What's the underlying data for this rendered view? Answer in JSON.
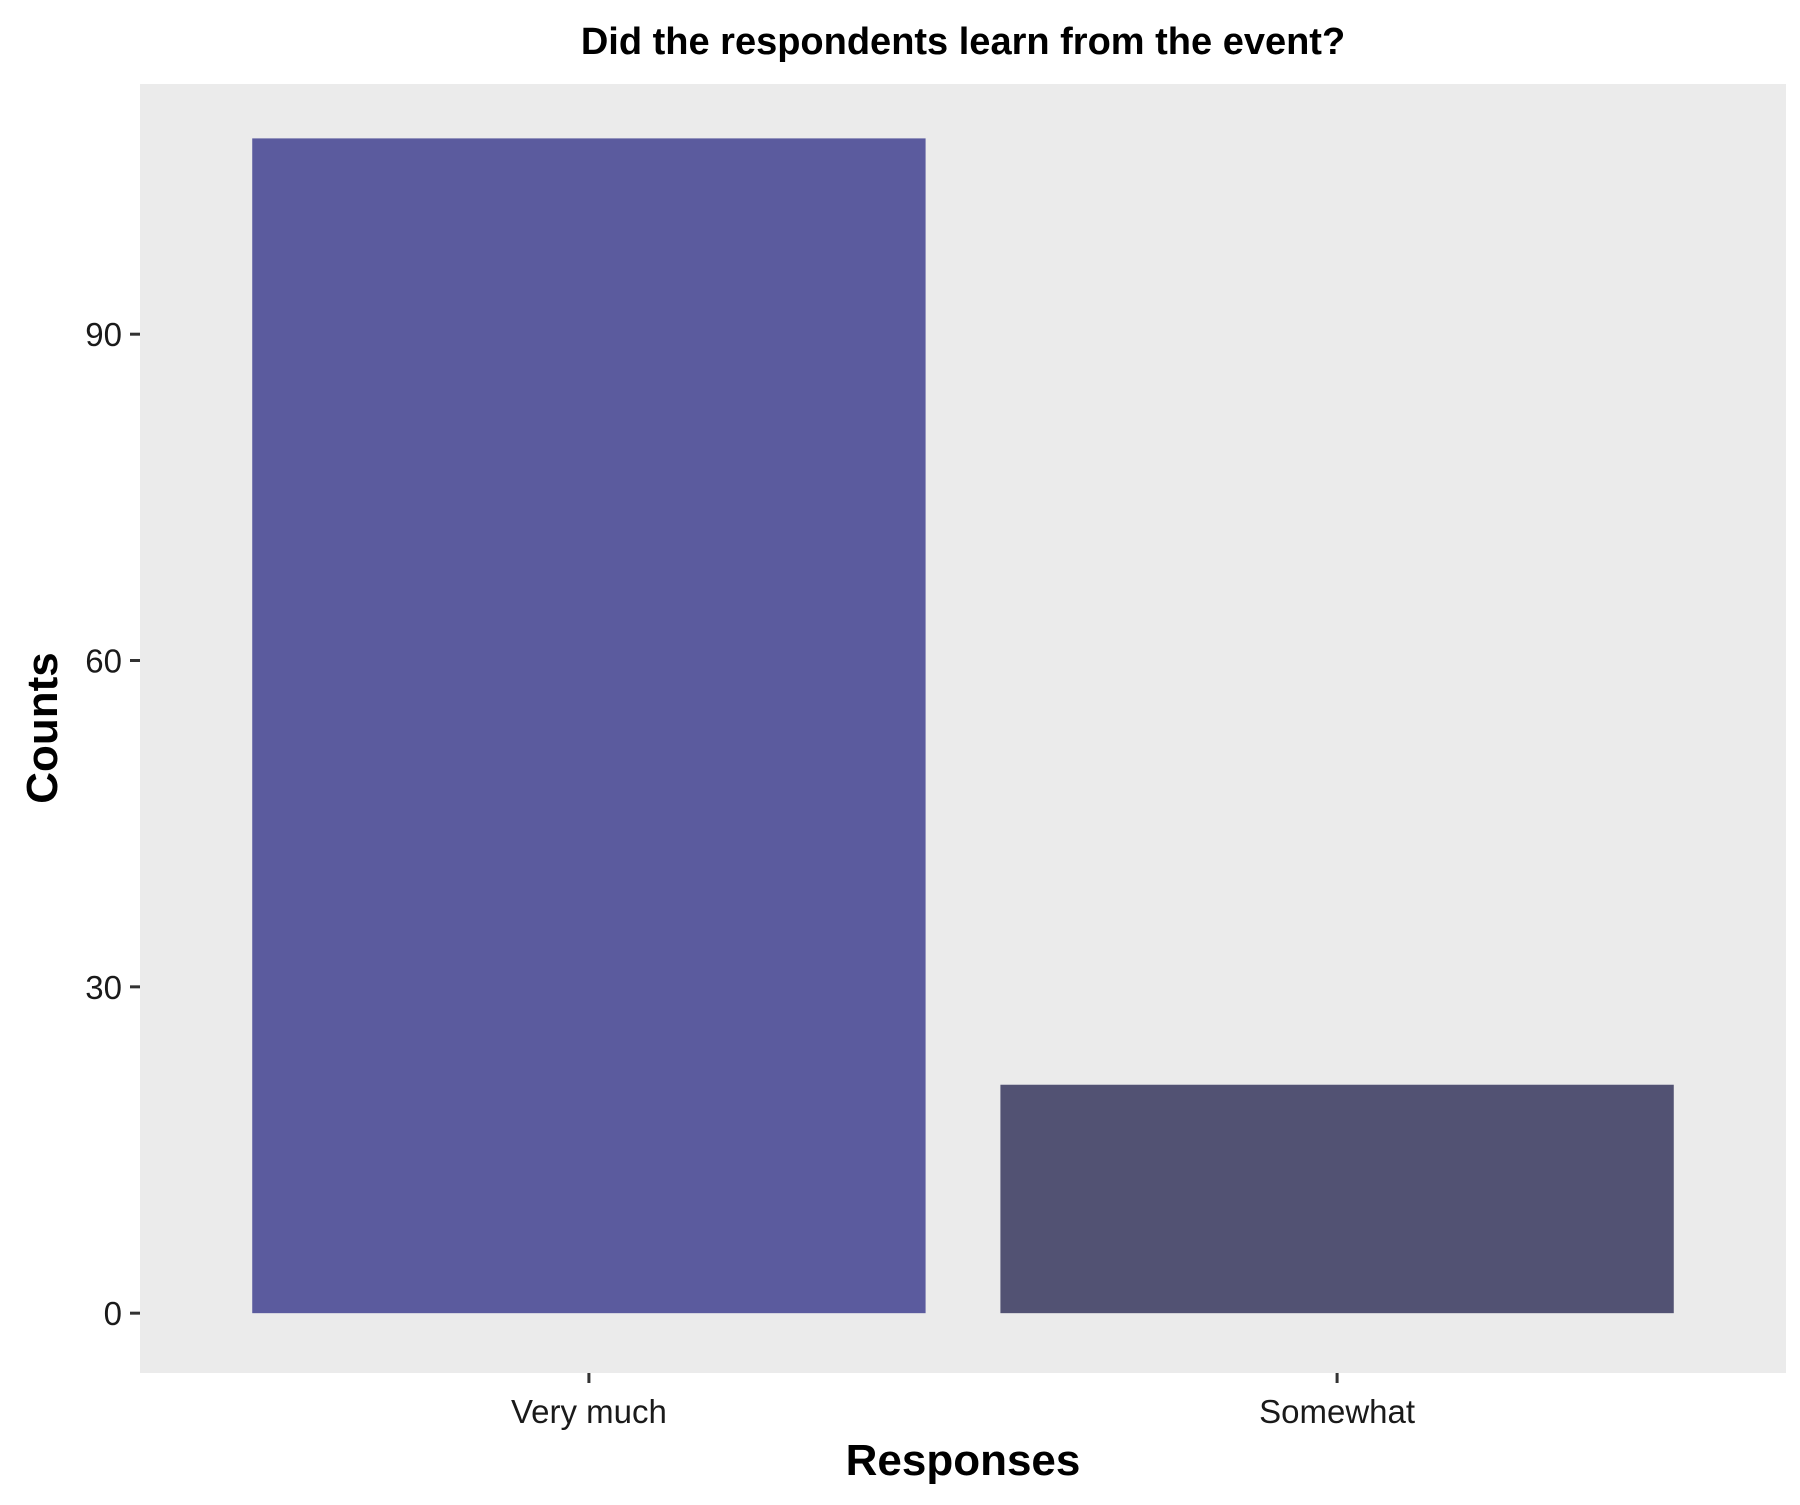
{
  "chart_data": {
    "type": "bar",
    "title": "Did the respondents learn from the event?",
    "xlabel": "Responses",
    "ylabel": "Counts",
    "categories": [
      "Very much",
      "Somewhat"
    ],
    "values": [
      108,
      21
    ],
    "ylim": [
      -5.5,
      113
    ],
    "yticks": [
      0,
      30,
      60,
      90
    ],
    "grid": false,
    "legend": "none",
    "colors": {
      "panel_background": "#EBEBEB",
      "bars": [
        "#5B5B9E",
        "#525273"
      ]
    }
  }
}
